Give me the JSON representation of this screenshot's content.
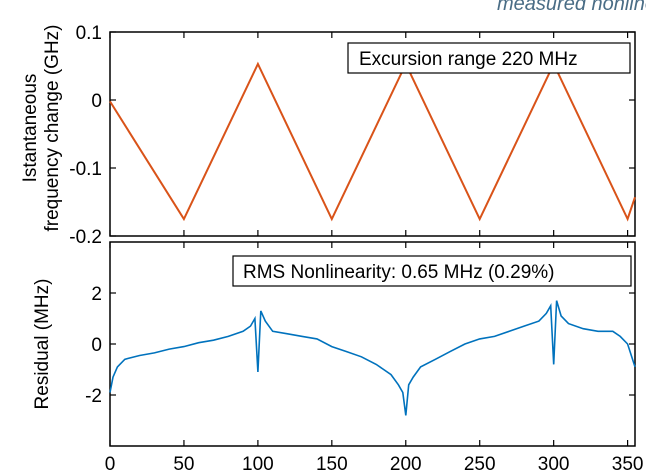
{
  "watermark": "measured nonlinear",
  "chart_data": [
    {
      "type": "line",
      "name": "frequency-excursion",
      "ylabel_line1": "Istantaneous",
      "ylabel_line2": "frequency change (GHz)",
      "xlim": [
        0,
        355
      ],
      "ylim": [
        -0.2,
        0.1
      ],
      "yticks": [
        0.1,
        0,
        -0.1,
        -0.2
      ],
      "ytick_labels": [
        "0.1",
        "0",
        "-0.1",
        "-0.2"
      ],
      "annotation": "Excursion range 220 MHz",
      "color": "#d95319",
      "x": [
        0,
        50,
        100,
        150,
        200,
        250,
        300,
        350,
        355
      ],
      "y": [
        -0.002,
        -0.175,
        0.053,
        -0.175,
        0.053,
        -0.175,
        0.053,
        -0.175,
        -0.143
      ]
    },
    {
      "type": "line",
      "name": "residual",
      "ylabel": "Residual (MHz)",
      "xlim": [
        0,
        355
      ],
      "ylim": [
        -4,
        4
      ],
      "yticks": [
        2,
        0,
        -2
      ],
      "ytick_labels": [
        "2",
        "0",
        "-2"
      ],
      "xticks": [
        0,
        50,
        100,
        150,
        200,
        250,
        300,
        350
      ],
      "xtick_labels": [
        "0",
        "50",
        "100",
        "150",
        "200",
        "250",
        "300",
        "350"
      ],
      "annotation": "RMS Nonlinearity: 0.65 MHz (0.29%)",
      "color": "#0072bd",
      "x": [
        0,
        2,
        5,
        10,
        20,
        30,
        40,
        50,
        60,
        70,
        80,
        90,
        95,
        98,
        100,
        102,
        105,
        110,
        120,
        130,
        140,
        150,
        160,
        170,
        180,
        190,
        195,
        198,
        200,
        202,
        205,
        210,
        220,
        230,
        240,
        250,
        260,
        270,
        280,
        290,
        295,
        298,
        300,
        302,
        305,
        310,
        320,
        330,
        340,
        345,
        350,
        355
      ],
      "y": [
        -1.9,
        -1.3,
        -0.9,
        -0.6,
        -0.45,
        -0.35,
        -0.2,
        -0.1,
        0.05,
        0.15,
        0.3,
        0.5,
        0.7,
        1.0,
        -1.1,
        1.3,
        0.9,
        0.5,
        0.4,
        0.3,
        0.2,
        -0.1,
        -0.3,
        -0.5,
        -0.8,
        -1.2,
        -1.6,
        -1.9,
        -2.8,
        -1.6,
        -1.3,
        -0.9,
        -0.6,
        -0.3,
        0.0,
        0.2,
        0.3,
        0.5,
        0.7,
        0.9,
        1.2,
        1.5,
        -0.8,
        1.7,
        1.1,
        0.8,
        0.6,
        0.5,
        0.5,
        0.3,
        0.0,
        -0.9
      ]
    }
  ]
}
